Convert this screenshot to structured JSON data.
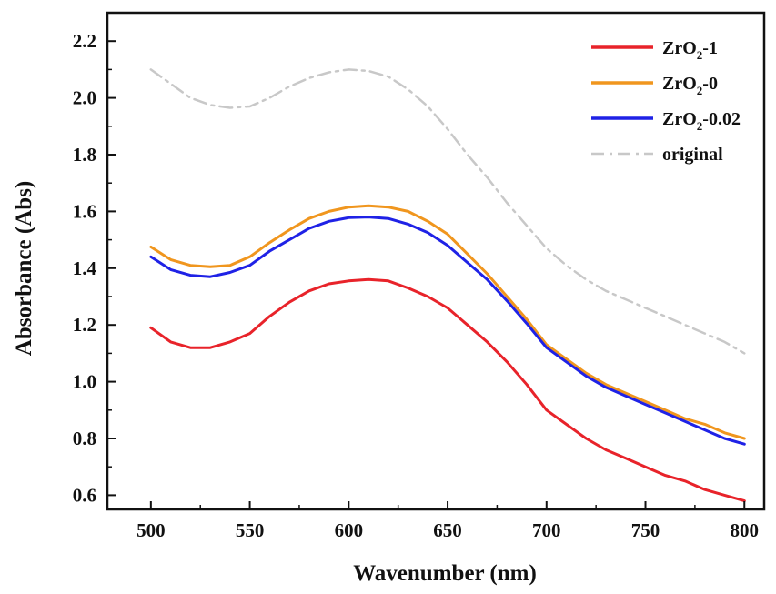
{
  "chart_data": {
    "type": "line",
    "title": "",
    "xlabel": "Wavenumber (nm)",
    "ylabel": "Absorbance (Abs)",
    "xlim": [
      478,
      810
    ],
    "ylim": [
      0.55,
      2.3
    ],
    "xticks": [
      500,
      550,
      600,
      650,
      700,
      750,
      800
    ],
    "yticks": [
      0.6,
      0.8,
      1.0,
      1.2,
      1.4,
      1.6,
      1.8,
      2.0,
      2.2
    ],
    "xtick_labels": [
      "500",
      "550",
      "600",
      "650",
      "700",
      "750",
      "800"
    ],
    "ytick_labels": [
      "0.6",
      "0.8",
      "1.0",
      "1.2",
      "1.4",
      "1.6",
      "1.8",
      "2.0",
      "2.2"
    ],
    "grid": false,
    "legend_position": "top-right",
    "x": [
      500,
      510,
      520,
      530,
      540,
      550,
      560,
      570,
      580,
      590,
      600,
      610,
      620,
      630,
      640,
      650,
      660,
      670,
      680,
      690,
      700,
      710,
      720,
      730,
      740,
      750,
      760,
      770,
      780,
      790,
      800
    ],
    "series": [
      {
        "name": "ZrO2-1",
        "name_main": "ZrO",
        "name_sub": "2",
        "name_suffix": "-1",
        "color": "#e8232a",
        "style": "solid",
        "values": [
          1.19,
          1.14,
          1.12,
          1.12,
          1.14,
          1.17,
          1.23,
          1.28,
          1.32,
          1.345,
          1.355,
          1.36,
          1.355,
          1.33,
          1.3,
          1.26,
          1.2,
          1.14,
          1.07,
          0.99,
          0.9,
          0.85,
          0.8,
          0.76,
          0.73,
          0.7,
          0.67,
          0.65,
          0.62,
          0.6,
          0.58
        ]
      },
      {
        "name": "ZrO2-0",
        "name_main": "ZrO",
        "name_sub": "2",
        "name_suffix": "-0",
        "color": "#f0961e",
        "style": "solid",
        "values": [
          1.475,
          1.43,
          1.41,
          1.405,
          1.41,
          1.44,
          1.49,
          1.535,
          1.575,
          1.6,
          1.615,
          1.62,
          1.615,
          1.6,
          1.565,
          1.52,
          1.45,
          1.38,
          1.3,
          1.22,
          1.13,
          1.08,
          1.03,
          0.99,
          0.96,
          0.93,
          0.9,
          0.87,
          0.85,
          0.82,
          0.8
        ]
      },
      {
        "name": "ZrO2-0.02",
        "name_main": "ZrO",
        "name_sub": "2",
        "name_suffix": "-0.02",
        "color": "#1f22e6",
        "style": "solid",
        "values": [
          1.44,
          1.395,
          1.375,
          1.37,
          1.385,
          1.41,
          1.46,
          1.5,
          1.54,
          1.565,
          1.578,
          1.58,
          1.575,
          1.555,
          1.525,
          1.48,
          1.42,
          1.36,
          1.285,
          1.205,
          1.12,
          1.07,
          1.02,
          0.98,
          0.95,
          0.92,
          0.89,
          0.86,
          0.83,
          0.8,
          0.78
        ]
      },
      {
        "name": "original",
        "name_main": "original",
        "name_sub": "",
        "name_suffix": "",
        "color": "#c8c8c8",
        "style": "dashdot",
        "values": [
          2.1,
          2.05,
          2.0,
          1.975,
          1.965,
          1.97,
          2.0,
          2.04,
          2.07,
          2.09,
          2.1,
          2.095,
          2.075,
          2.03,
          1.97,
          1.89,
          1.8,
          1.72,
          1.63,
          1.55,
          1.47,
          1.41,
          1.36,
          1.32,
          1.29,
          1.26,
          1.23,
          1.2,
          1.17,
          1.14,
          1.1
        ]
      }
    ]
  }
}
